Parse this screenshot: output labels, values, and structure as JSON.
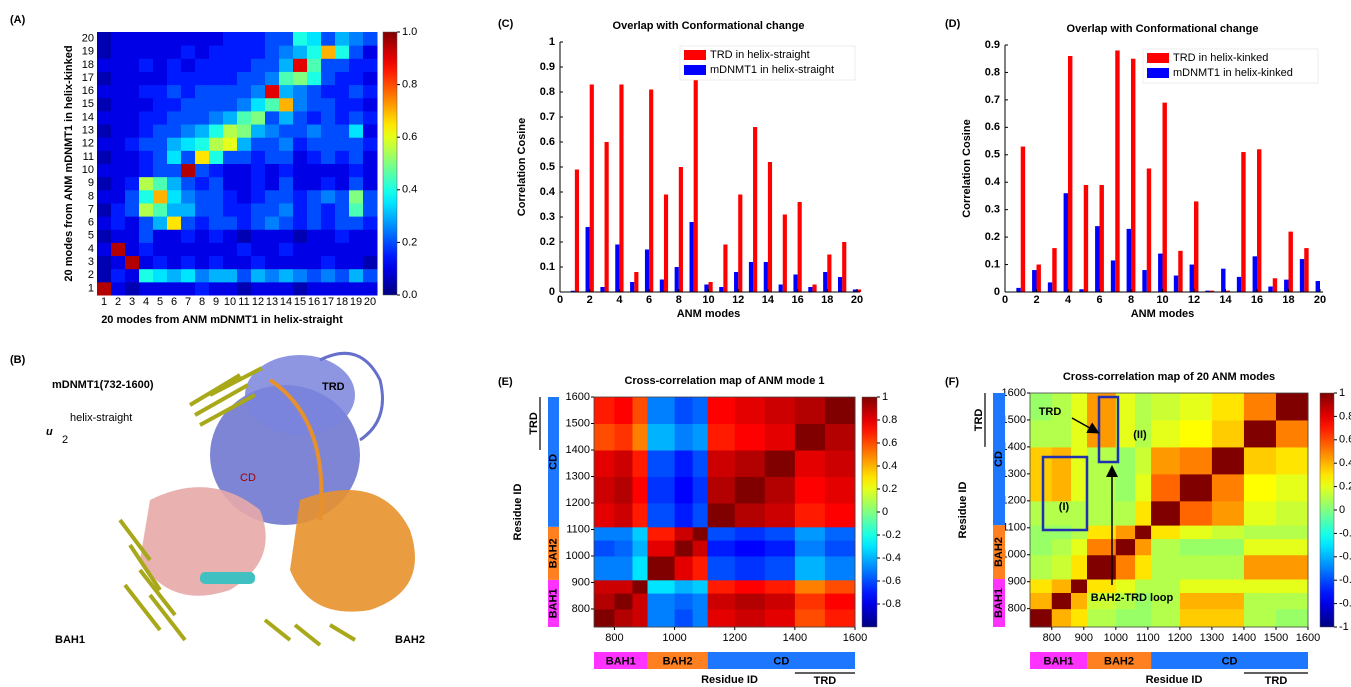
{
  "panel_b": {
    "label": "(B)",
    "protein": "mDNMT1(732-1600)",
    "mode_symbol": "u",
    "mode_sub": "2",
    "mode_sup": "helix-straight",
    "domains": [
      "TRD",
      "CD",
      "BAH1",
      "BAH2"
    ]
  },
  "chart_data": [
    {
      "type": "heatmap",
      "panel_label": "(A)",
      "xlabel": "20 modes from ANM mDNMT1 in helix-straight",
      "ylabel": "20 modes from ANM mDNMT1 in helix-kinked",
      "x_categories": [
        "1",
        "2",
        "3",
        "4",
        "5",
        "6",
        "7",
        "8",
        "9",
        "10",
        "11",
        "12",
        "13",
        "14",
        "15",
        "16",
        "17",
        "18",
        "19",
        "20"
      ],
      "y_categories": [
        "1",
        "2",
        "3",
        "4",
        "5",
        "6",
        "7",
        "8",
        "9",
        "10",
        "11",
        "12",
        "13",
        "14",
        "15",
        "16",
        "17",
        "18",
        "19",
        "20"
      ],
      "values": [
        [
          0.95,
          0.1,
          0.05,
          0.1,
          0.1,
          0.1,
          0.1,
          0.15,
          0.1,
          0.1,
          0.05,
          0.1,
          0.1,
          0.1,
          0.05,
          0.1,
          0.1,
          0.1,
          0.1,
          0.1
        ],
        [
          0.05,
          0.15,
          0.1,
          0.4,
          0.35,
          0.3,
          0.35,
          0.25,
          0.3,
          0.3,
          0.2,
          0.3,
          0.25,
          0.3,
          0.25,
          0.2,
          0.25,
          0.2,
          0.3,
          0.2
        ],
        [
          0.05,
          0.1,
          0.95,
          0.1,
          0.15,
          0.1,
          0.15,
          0.1,
          0.15,
          0.1,
          0.1,
          0.15,
          0.1,
          0.1,
          0.1,
          0.1,
          0.15,
          0.1,
          0.1,
          0.05
        ],
        [
          0.1,
          0.95,
          0.1,
          0.15,
          0.1,
          0.1,
          0.1,
          0.1,
          0.1,
          0.1,
          0.15,
          0.1,
          0.1,
          0.15,
          0.1,
          0.1,
          0.1,
          0.1,
          0.1,
          0.1
        ],
        [
          0.05,
          0.1,
          0.1,
          0.2,
          0.1,
          0.1,
          0.15,
          0.1,
          0.15,
          0.1,
          0.05,
          0.1,
          0.1,
          0.1,
          0.05,
          0.1,
          0.1,
          0.15,
          0.1,
          0.1
        ],
        [
          0.1,
          0.15,
          0.1,
          0.2,
          0.3,
          0.65,
          0.2,
          0.15,
          0.2,
          0.2,
          0.15,
          0.2,
          0.25,
          0.2,
          0.15,
          0.2,
          0.15,
          0.2,
          0.2,
          0.15
        ],
        [
          0.05,
          0.15,
          0.2,
          0.55,
          0.45,
          0.3,
          0.3,
          0.2,
          0.2,
          0.15,
          0.15,
          0.2,
          0.2,
          0.25,
          0.15,
          0.2,
          0.15,
          0.2,
          0.45,
          0.2
        ],
        [
          0.1,
          0.1,
          0.2,
          0.4,
          0.7,
          0.35,
          0.25,
          0.2,
          0.2,
          0.15,
          0.1,
          0.15,
          0.2,
          0.2,
          0.15,
          0.2,
          0.25,
          0.2,
          0.5,
          0.2
        ],
        [
          0.05,
          0.1,
          0.15,
          0.55,
          0.45,
          0.3,
          0.2,
          0.15,
          0.2,
          0.1,
          0.1,
          0.15,
          0.1,
          0.2,
          0.1,
          0.1,
          0.15,
          0.1,
          0.2,
          0.1
        ],
        [
          0.1,
          0.1,
          0.1,
          0.15,
          0.2,
          0.2,
          0.95,
          0.2,
          0.15,
          0.1,
          0.1,
          0.15,
          0.1,
          0.15,
          0.1,
          0.1,
          0.1,
          0.1,
          0.15,
          0.1
        ],
        [
          0.05,
          0.1,
          0.1,
          0.15,
          0.2,
          0.35,
          0.2,
          0.65,
          0.4,
          0.2,
          0.2,
          0.15,
          0.2,
          0.2,
          0.1,
          0.15,
          0.2,
          0.15,
          0.2,
          0.1
        ],
        [
          0.1,
          0.1,
          0.15,
          0.2,
          0.2,
          0.3,
          0.35,
          0.4,
          0.55,
          0.6,
          0.3,
          0.2,
          0.2,
          0.25,
          0.15,
          0.2,
          0.2,
          0.2,
          0.2,
          0.15
        ],
        [
          0.05,
          0.1,
          0.1,
          0.15,
          0.2,
          0.2,
          0.25,
          0.3,
          0.4,
          0.55,
          0.5,
          0.3,
          0.25,
          0.2,
          0.2,
          0.25,
          0.2,
          0.2,
          0.35,
          0.1
        ],
        [
          0.1,
          0.1,
          0.1,
          0.15,
          0.15,
          0.2,
          0.2,
          0.2,
          0.25,
          0.3,
          0.45,
          0.5,
          0.2,
          0.3,
          0.2,
          0.15,
          0.2,
          0.15,
          0.2,
          0.15
        ],
        [
          0.05,
          0.1,
          0.1,
          0.1,
          0.15,
          0.15,
          0.2,
          0.2,
          0.2,
          0.2,
          0.25,
          0.35,
          0.45,
          0.7,
          0.25,
          0.2,
          0.2,
          0.15,
          0.15,
          0.1
        ],
        [
          0.1,
          0.1,
          0.1,
          0.15,
          0.15,
          0.2,
          0.15,
          0.2,
          0.2,
          0.2,
          0.2,
          0.25,
          0.9,
          0.3,
          0.25,
          0.2,
          0.15,
          0.15,
          0.2,
          0.15
        ],
        [
          0.05,
          0.1,
          0.1,
          0.1,
          0.1,
          0.15,
          0.15,
          0.15,
          0.15,
          0.15,
          0.2,
          0.2,
          0.25,
          0.45,
          0.5,
          0.4,
          0.2,
          0.15,
          0.15,
          0.1
        ],
        [
          0.1,
          0.1,
          0.1,
          0.15,
          0.1,
          0.15,
          0.1,
          0.15,
          0.15,
          0.15,
          0.15,
          0.2,
          0.2,
          0.3,
          0.9,
          0.45,
          0.2,
          0.2,
          0.15,
          0.15
        ],
        [
          0.05,
          0.1,
          0.1,
          0.1,
          0.1,
          0.1,
          0.15,
          0.1,
          0.15,
          0.15,
          0.15,
          0.15,
          0.2,
          0.25,
          0.3,
          0.4,
          0.7,
          0.4,
          0.2,
          0.1
        ],
        [
          0.05,
          0.1,
          0.1,
          0.1,
          0.1,
          0.1,
          0.1,
          0.1,
          0.1,
          0.15,
          0.15,
          0.15,
          0.2,
          0.2,
          0.4,
          0.35,
          0.2,
          0.3,
          0.25,
          0.2
        ]
      ],
      "clim": [
        0,
        1
      ],
      "cticks": [
        {
          "value": 0,
          "label": "0.0"
        },
        0.2,
        0.4,
        0.6,
        0.8,
        {
          "value": 1,
          "label": "1.0"
        }
      ],
      "colormap": "jet"
    },
    {
      "type": "bar",
      "panel_label": "(C)",
      "title": "Overlap with Conformational change",
      "xlabel": "ANM modes",
      "ylabel": "Correlation Cosine",
      "x": [
        1,
        2,
        3,
        4,
        5,
        6,
        7,
        8,
        9,
        10,
        11,
        12,
        13,
        14,
        15,
        16,
        17,
        18,
        19,
        20
      ],
      "xlim": [
        0,
        20
      ],
      "xticks": [
        0,
        2,
        4,
        6,
        8,
        10,
        12,
        14,
        16,
        18,
        20
      ],
      "ylim": [
        0,
        1
      ],
      "yticks": [
        0,
        0.1,
        0.2,
        0.3,
        0.4,
        0.5,
        0.6,
        0.7,
        0.8,
        0.9,
        1
      ],
      "series": [
        {
          "name": "TRD in helix-straight",
          "color": "#ff0000",
          "values": [
            0.49,
            0.83,
            0.6,
            0.83,
            0.08,
            0.81,
            0.39,
            0.5,
            0.89,
            0.04,
            0.19,
            0.39,
            0.66,
            0.52,
            0.31,
            0.36,
            0.03,
            0.15,
            0.2,
            0.01
          ]
        },
        {
          "name": "mDNMT1 in helix-straight",
          "color": "#0000ff",
          "values": [
            0.005,
            0.26,
            0.02,
            0.19,
            0.04,
            0.17,
            0.05,
            0.1,
            0.28,
            0.03,
            0.02,
            0.08,
            0.12,
            0.12,
            0.03,
            0.07,
            0.02,
            0.08,
            0.06,
            0.01
          ]
        }
      ],
      "legend": "upper right"
    },
    {
      "type": "bar",
      "panel_label": "(D)",
      "title": "Overlap with Conformational change",
      "xlabel": "ANM modes",
      "ylabel": "Correlation Cosine",
      "x": [
        1,
        2,
        3,
        4,
        5,
        6,
        7,
        8,
        9,
        10,
        11,
        12,
        13,
        14,
        15,
        16,
        17,
        18,
        19,
        20
      ],
      "xlim": [
        0,
        20
      ],
      "xticks": [
        0,
        2,
        4,
        6,
        8,
        10,
        12,
        14,
        16,
        18,
        20
      ],
      "ylim": [
        0,
        0.9
      ],
      "yticks": [
        0,
        0.1,
        0.2,
        0.3,
        0.4,
        0.5,
        0.6,
        0.7,
        0.8,
        0.9
      ],
      "series": [
        {
          "name": "TRD in helix-kinked",
          "color": "#ff0000",
          "values": [
            0.53,
            0.1,
            0.16,
            0.86,
            0.39,
            0.39,
            0.88,
            0.85,
            0.45,
            0.69,
            0.15,
            0.33,
            0.005,
            0.005,
            0.51,
            0.52,
            0.05,
            0.22,
            0.16,
            0
          ]
        },
        {
          "name": "mDNMT1 in helix-kinked",
          "color": "#0000ff",
          "values": [
            0.015,
            0.08,
            0.035,
            0.36,
            0.01,
            0.24,
            0.115,
            0.23,
            0.08,
            0.14,
            0.06,
            0.1,
            0.005,
            0.085,
            0.055,
            0.13,
            0.02,
            0.045,
            0.12,
            0.04
          ]
        }
      ],
      "legend": "upper right"
    },
    {
      "type": "heatmap",
      "panel_label": "(E)",
      "title": "Cross-correlation map of ANM mode 1",
      "xlabel": "Residue ID",
      "ylabel": "Residue ID",
      "x_edges": [
        732,
        800,
        860,
        910,
        1000,
        1060,
        1110,
        1200,
        1300,
        1400,
        1500,
        1600
      ],
      "y_edges": [
        732,
        800,
        860,
        910,
        1000,
        1060,
        1110,
        1200,
        1300,
        1400,
        1500,
        1600
      ],
      "xlim": [
        732,
        1600
      ],
      "ylim": [
        732,
        1600
      ],
      "xticks": [
        800,
        1000,
        1200,
        1400,
        1600
      ],
      "yticks": [
        800,
        900,
        1000,
        1100,
        1200,
        1300,
        1400,
        1500,
        1600
      ],
      "values": [
        [
          1,
          0.9,
          0.85,
          -0.5,
          -0.6,
          -0.5,
          0.8,
          0.85,
          0.8,
          0.6,
          0.7
        ],
        [
          0.9,
          1,
          0.85,
          -0.5,
          -0.55,
          -0.5,
          0.85,
          0.9,
          0.85,
          0.65,
          0.75
        ],
        [
          0.85,
          0.85,
          1,
          -0.3,
          -0.4,
          -0.35,
          0.7,
          0.75,
          0.7,
          0.5,
          0.6
        ],
        [
          -0.5,
          -0.5,
          -0.3,
          1,
          0.8,
          0.7,
          -0.6,
          -0.65,
          -0.6,
          -0.4,
          -0.5
        ],
        [
          -0.6,
          -0.55,
          -0.4,
          0.8,
          1,
          0.85,
          -0.7,
          -0.75,
          -0.7,
          -0.5,
          -0.6
        ],
        [
          -0.5,
          -0.5,
          -0.35,
          0.7,
          0.85,
          1,
          -0.6,
          -0.65,
          -0.6,
          -0.45,
          -0.55
        ],
        [
          0.8,
          0.85,
          0.7,
          -0.6,
          -0.7,
          -0.6,
          1,
          0.9,
          0.85,
          0.7,
          0.75
        ],
        [
          0.85,
          0.9,
          0.75,
          -0.65,
          -0.75,
          -0.65,
          0.9,
          1,
          0.9,
          0.75,
          0.8
        ],
        [
          0.8,
          0.85,
          0.7,
          -0.6,
          -0.7,
          -0.6,
          0.85,
          0.9,
          1,
          0.8,
          0.85
        ],
        [
          0.6,
          0.65,
          0.5,
          -0.4,
          -0.5,
          -0.45,
          0.7,
          0.75,
          0.8,
          1,
          0.9
        ],
        [
          0.7,
          0.75,
          0.6,
          -0.5,
          -0.6,
          -0.55,
          0.75,
          0.8,
          0.85,
          0.9,
          1
        ]
      ],
      "clim": [
        -1,
        1
      ],
      "cticks": [
        1,
        0.8,
        0.6,
        0.4,
        0.2,
        0,
        -0.2,
        -0.4,
        -0.6,
        -0.8
      ],
      "colormap": "jet",
      "domains": [
        {
          "name": "BAH1",
          "start": 732,
          "end": 910,
          "color": "#ff33ff",
          "style": "bar"
        },
        {
          "name": "BAH2",
          "start": 910,
          "end": 1110,
          "color": "#ff8020",
          "style": "bar"
        },
        {
          "name": "CD",
          "start": 1110,
          "end": 1600,
          "color": "#1e78ff",
          "style": "bar"
        },
        {
          "name": "TRD",
          "start": 1400,
          "end": 1600,
          "color": "#000000",
          "style": "bracket"
        }
      ]
    },
    {
      "type": "heatmap",
      "panel_label": "(F)",
      "title": "Cross-correlation map of 20 ANM modes",
      "xlabel": "Residue ID",
      "ylabel": "Residue ID",
      "x_edges": [
        732,
        800,
        860,
        910,
        1000,
        1060,
        1110,
        1200,
        1300,
        1400,
        1500,
        1600
      ],
      "y_edges": [
        732,
        800,
        860,
        910,
        1000,
        1060,
        1110,
        1200,
        1300,
        1400,
        1500,
        1600
      ],
      "xlim": [
        732,
        1600
      ],
      "ylim": [
        732,
        1600
      ],
      "xticks": [
        800,
        900,
        1000,
        1100,
        1200,
        1300,
        1400,
        1500,
        1600
      ],
      "yticks": [
        800,
        900,
        1000,
        1100,
        1200,
        1300,
        1400,
        1500,
        1600
      ],
      "values": [
        [
          1,
          0.4,
          0.3,
          0.1,
          0.05,
          0.05,
          0.1,
          0.35,
          0.35,
          0.1,
          0.05
        ],
        [
          0.4,
          1,
          0.4,
          0.15,
          0.1,
          0.05,
          0.1,
          0.4,
          0.4,
          0.1,
          0.1
        ],
        [
          0.3,
          0.4,
          1,
          0.3,
          0.2,
          0.1,
          0.1,
          0.2,
          0.2,
          0.2,
          0.2
        ],
        [
          0.1,
          0.15,
          0.3,
          1,
          0.5,
          0.3,
          0.1,
          0.1,
          0.1,
          0.45,
          0.45
        ],
        [
          0.05,
          0.1,
          0.2,
          0.5,
          1,
          0.45,
          0.1,
          0.05,
          0.05,
          0.2,
          0.2
        ],
        [
          0.05,
          0.05,
          0.1,
          0.3,
          0.45,
          1,
          0.3,
          0.2,
          0.15,
          0.1,
          0.1
        ],
        [
          0.1,
          0.1,
          0.1,
          0.1,
          0.1,
          0.3,
          1,
          0.55,
          0.45,
          0.2,
          0.15
        ],
        [
          0.35,
          0.4,
          0.2,
          0.1,
          0.05,
          0.2,
          0.55,
          1,
          0.5,
          0.25,
          0.2
        ],
        [
          0.35,
          0.4,
          0.2,
          0.1,
          0.05,
          0.15,
          0.45,
          0.5,
          1,
          0.35,
          0.3
        ],
        [
          0.1,
          0.1,
          0.2,
          0.45,
          0.2,
          0.1,
          0.2,
          0.25,
          0.35,
          1,
          0.5
        ],
        [
          0.05,
          0.1,
          0.2,
          0.45,
          0.2,
          0.1,
          0.15,
          0.2,
          0.3,
          0.5,
          1
        ]
      ],
      "clim": [
        -1,
        1
      ],
      "cticks": [
        1,
        0.8,
        0.6,
        0.4,
        0.2,
        0,
        -0.2,
        -0.4,
        -0.6,
        -0.8,
        -1
      ],
      "colormap": "jet",
      "domains": [
        {
          "name": "BAH1",
          "start": 732,
          "end": 910,
          "color": "#ff33ff",
          "style": "bar"
        },
        {
          "name": "BAH2",
          "start": 910,
          "end": 1110,
          "color": "#ff8020",
          "style": "bar"
        },
        {
          "name": "CD",
          "start": 1110,
          "end": 1600,
          "color": "#1e78ff",
          "style": "bar"
        },
        {
          "name": "TRD",
          "start": 1400,
          "end": 1600,
          "color": "#000000",
          "style": "bracket"
        }
      ],
      "annotations": [
        "(I)",
        "(II)",
        "TRD",
        "BAH2-TRD loop"
      ]
    }
  ]
}
